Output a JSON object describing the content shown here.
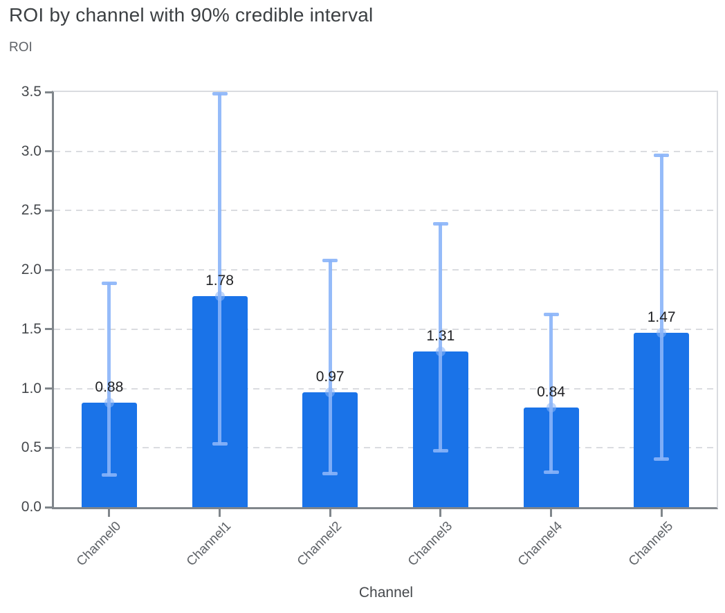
{
  "header": {
    "title": "ROI by channel with 90% credible interval"
  },
  "chart_data": {
    "type": "bar",
    "title": "ROI by channel with 90% credible interval",
    "ylabel": "ROI",
    "xlabel": "Channel",
    "categories": [
      "Channel0",
      "Channel1",
      "Channel2",
      "Channel3",
      "Channel4",
      "Channel5"
    ],
    "values": [
      0.88,
      1.78,
      0.97,
      1.31,
      0.84,
      1.47
    ],
    "value_labels": [
      "0.88",
      "1.78",
      "0.97",
      "1.31",
      "0.84",
      "1.47"
    ],
    "error_low": [
      0.27,
      0.53,
      0.28,
      0.47,
      0.29,
      0.4
    ],
    "error_high": [
      1.89,
      3.49,
      2.08,
      2.39,
      1.63,
      2.97
    ],
    "y_ticks": [
      "0.0",
      "0.5",
      "1.0",
      "1.5",
      "2.0",
      "2.5",
      "3.0",
      "3.5"
    ],
    "ylim": [
      0,
      3.5
    ],
    "grid": "dashed-horizontal",
    "legend": "none",
    "colors": {
      "bar": "#1a73e8",
      "error_bar": "#8ab4f8",
      "grid": "#dadce0",
      "axis": "#80868b",
      "title_text": "#3c4043",
      "muted_text": "#5f6368",
      "value_text": "#202124"
    }
  }
}
